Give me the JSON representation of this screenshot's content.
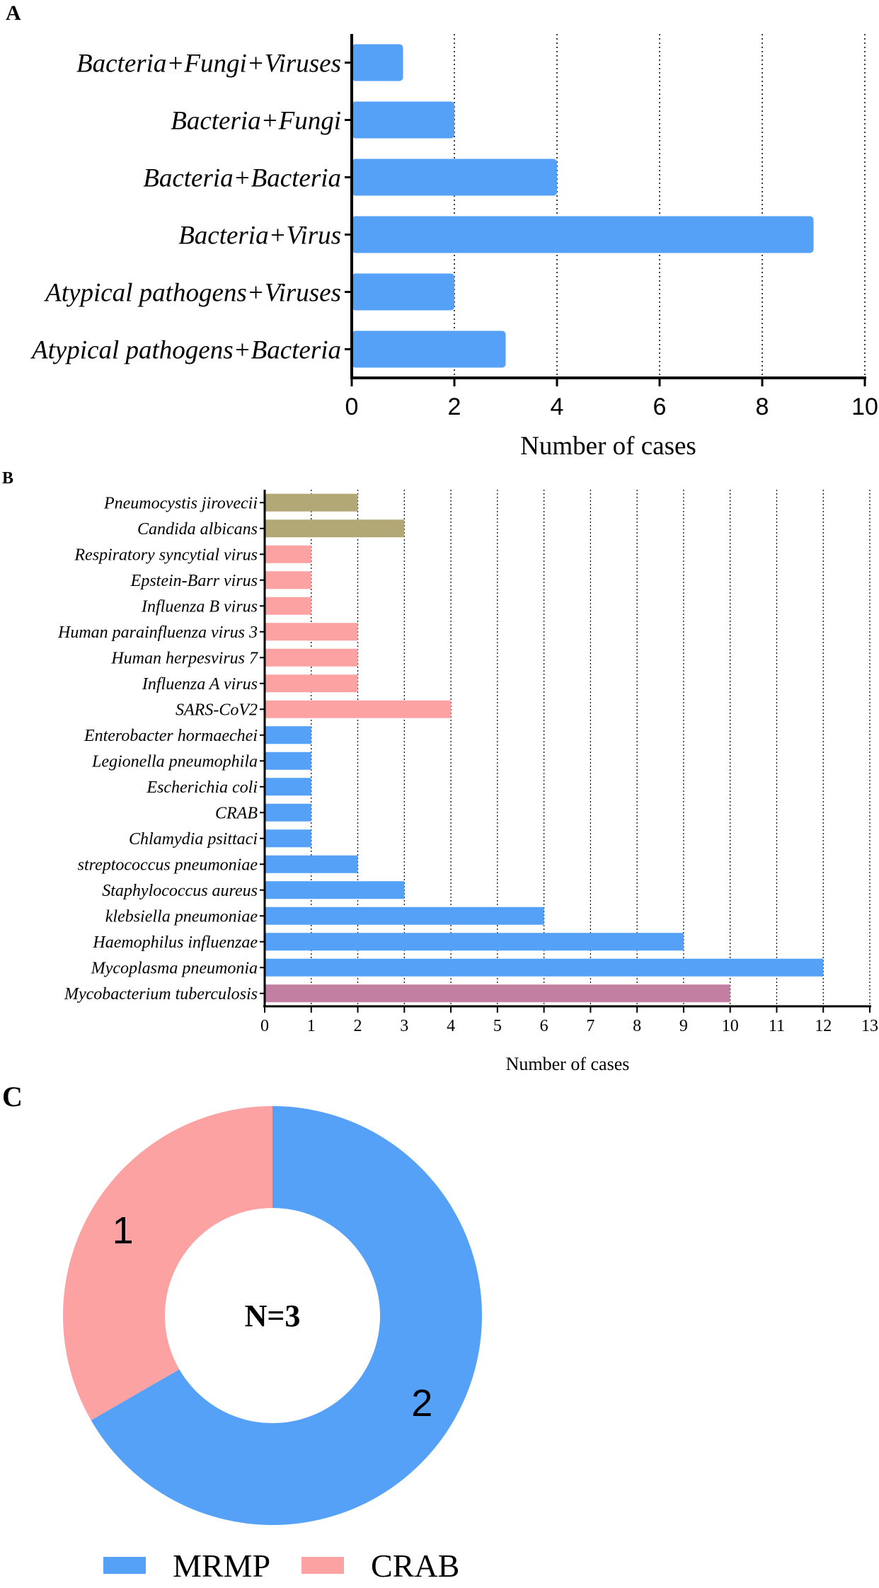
{
  "panels": {
    "a": {
      "letter": "A"
    },
    "b": {
      "letter": "B"
    },
    "c": {
      "letter": "C"
    }
  },
  "chart_data": [
    {
      "id": "A",
      "type": "bar",
      "orientation": "horizontal",
      "categories": [
        "Bacteria+Fungi+Viruses",
        "Bacteria+Fungi",
        "Bacteria+Bacteria",
        "Bacteria+Virus",
        "Atypical pathogens+Viruses",
        "Atypical pathogens+Bacteria"
      ],
      "values": [
        1,
        2,
        4,
        9,
        2,
        3
      ],
      "xlabel": "Number of cases",
      "xlim": [
        0,
        10
      ],
      "xticks": [
        0,
        2,
        4,
        6,
        8,
        10
      ],
      "grid": "vertical dotted",
      "color": "#55a1f7"
    },
    {
      "id": "B",
      "type": "bar",
      "orientation": "horizontal",
      "categories": [
        "Pneumocystis jirovecii",
        "Candida albicans",
        "Respiratory syncytial virus",
        "Epstein-Barr virus",
        "Influenza B virus",
        "Human parainfluenza virus 3",
        "Human herpesvirus 7",
        "Influenza A virus",
        "SARS-CoV2",
        "Enterobacter hormaechei",
        "Legionella pneumophila",
        "Escherichia coli",
        "CRAB",
        "Chlamydia psittaci",
        "streptococcus pneumoniae",
        "Staphylococcus aureus",
        "klebsiella pneumoniae",
        "Haemophilus influenzae",
        "Mycoplasma pneumonia",
        "Mycobacterium tuberculosis"
      ],
      "values": [
        2,
        3,
        1,
        1,
        1,
        2,
        2,
        2,
        4,
        1,
        1,
        1,
        1,
        1,
        2,
        3,
        6,
        9,
        12,
        10
      ],
      "groups": [
        "fungi",
        "fungi",
        "virus",
        "virus",
        "virus",
        "virus",
        "virus",
        "virus",
        "virus",
        "bacteria",
        "bacteria",
        "bacteria",
        "bacteria",
        "bacteria",
        "bacteria",
        "bacteria",
        "bacteria",
        "bacteria",
        "bacteria",
        "mycobacteria"
      ],
      "group_colors": {
        "fungi": "#b2a876",
        "virus": "#fda2a2",
        "bacteria": "#55a1f7",
        "mycobacteria": "#c27fa2"
      },
      "xlabel": "Number of cases",
      "xlim": [
        0,
        13
      ],
      "xticks": [
        0,
        1,
        2,
        3,
        4,
        5,
        6,
        7,
        8,
        9,
        10,
        11,
        12,
        13
      ],
      "grid": "vertical dotted"
    },
    {
      "id": "C",
      "type": "pie",
      "style": "donut",
      "center_label": "N=3",
      "slices": [
        {
          "label": "MRMP",
          "value": 2,
          "color": "#55a1f7"
        },
        {
          "label": "CRAB",
          "value": 1,
          "color": "#fda2a2"
        }
      ],
      "legend": "bottom"
    }
  ]
}
